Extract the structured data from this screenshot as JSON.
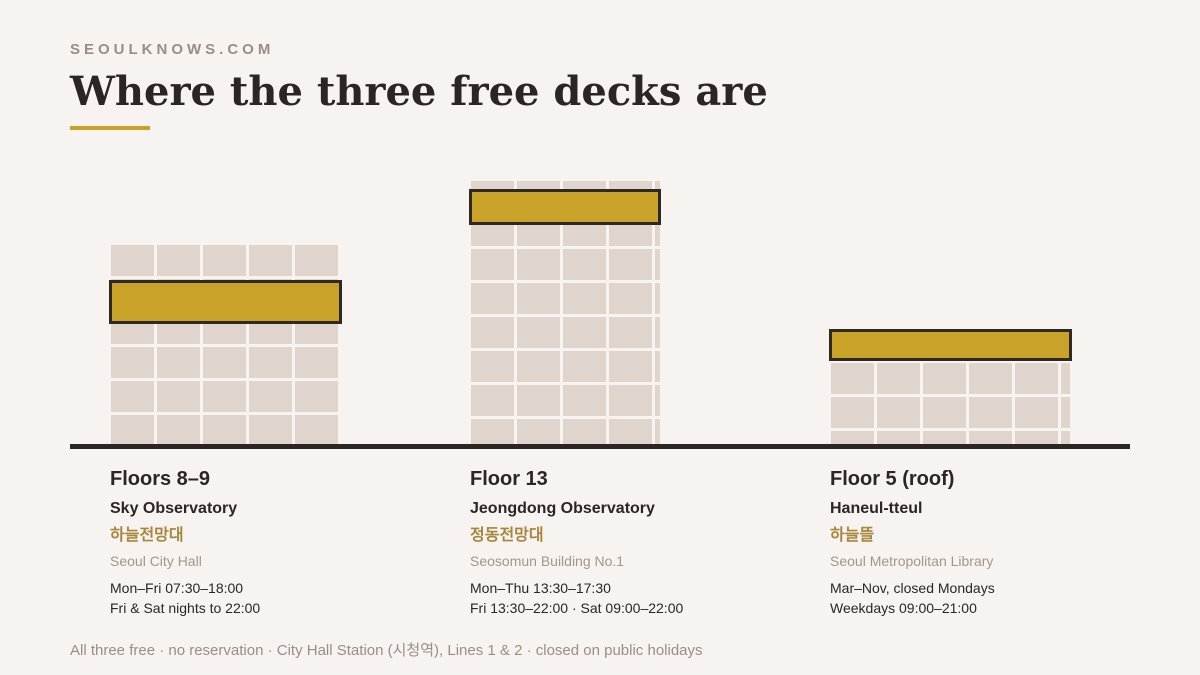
{
  "header": {
    "site": "SEOULKNOWS.COM",
    "title": "Where the three free decks are"
  },
  "colors": {
    "background": "#f7f3f0",
    "building": "#e0d5cd",
    "deck": "#c9a22a",
    "ink": "#2b2623",
    "korean": "#a8863c",
    "muted": "#a39789"
  },
  "decks": [
    {
      "floor": "Floors 8–9",
      "name": "Sky Observatory",
      "korean": "하늘전망대",
      "building": "Seoul City Hall",
      "hours": [
        "Mon–Fri 07:30–18:00",
        "Fri & Sat nights to 22:00"
      ]
    },
    {
      "floor": "Floor 13",
      "name": "Jeongdong Observatory",
      "korean": "정동전망대",
      "building": "Seosomun Building No.1",
      "hours": [
        "Mon–Thu 13:30–17:30",
        "Fri 13:30–22:00 · Sat 09:00–22:00"
      ]
    },
    {
      "floor": "Floor 5 (roof)",
      "name": "Haneul-tteul",
      "korean": "하늘뜰",
      "building": "Seoul Metropolitan Library",
      "hours": [
        "Mar–Nov, closed Mondays",
        "Weekdays 09:00–21:00"
      ]
    }
  ],
  "footer": "All three free · no reservation · City Hall Station (시청역), Lines 1 & 2 · closed on public holidays"
}
